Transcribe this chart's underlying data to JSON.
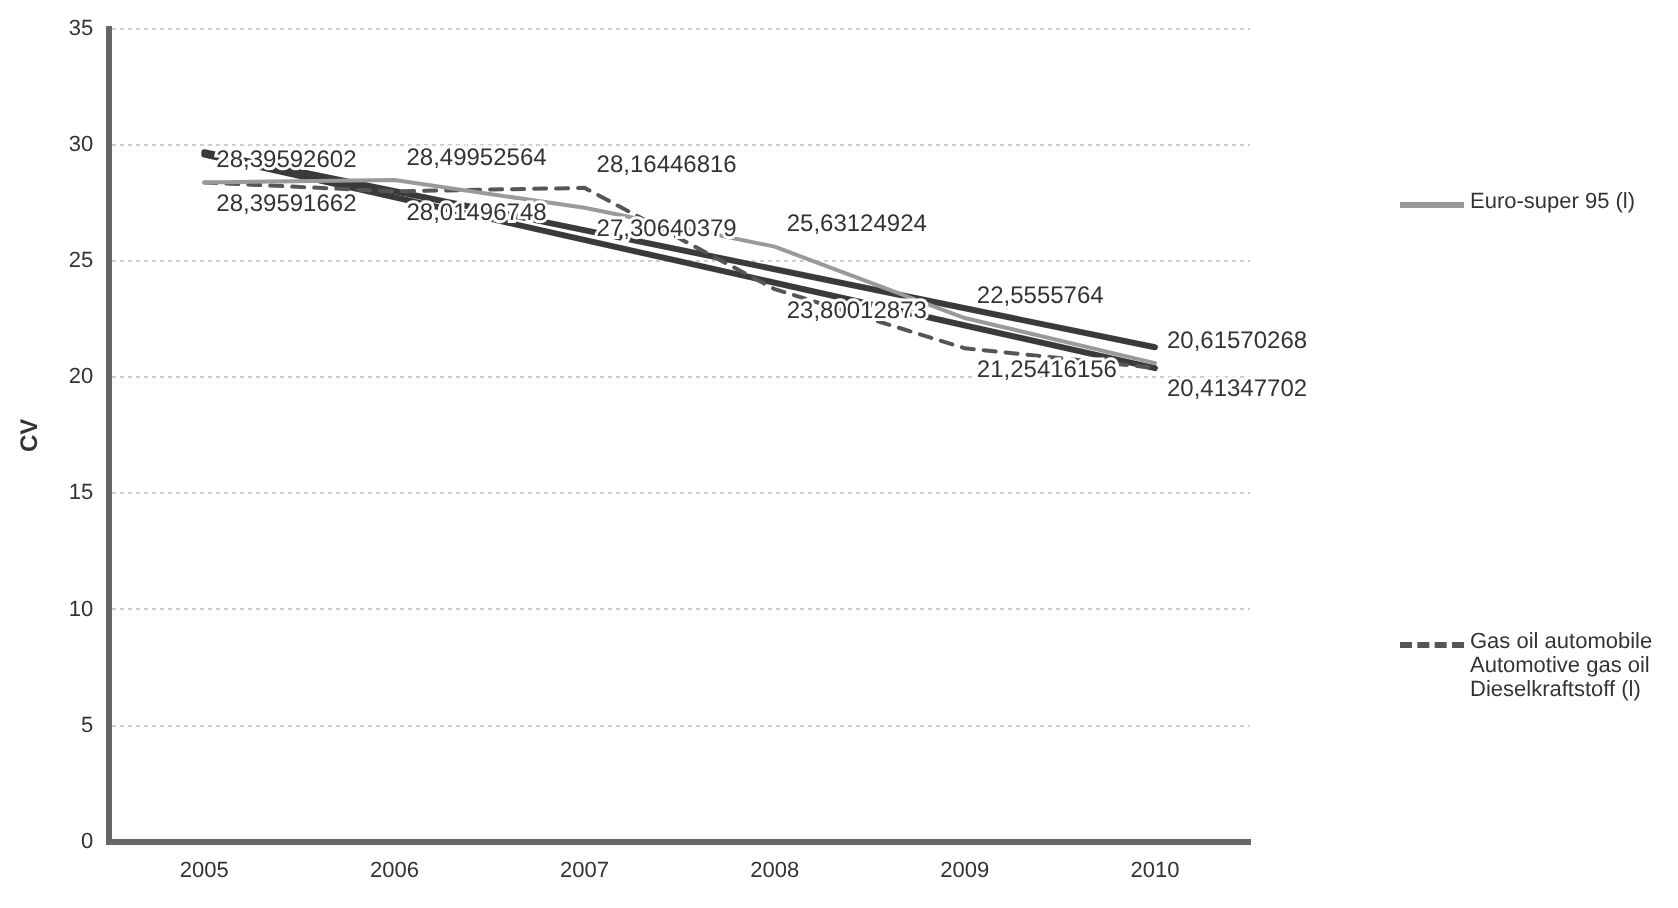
{
  "chart_data": {
    "type": "line",
    "ylabel": "CV",
    "categories": [
      "2005",
      "2006",
      "2007",
      "2008",
      "2009",
      "2010"
    ],
    "series": [
      {
        "name": "Euro-super 95 (l)",
        "color": "#9a9a9a",
        "line_style": "solid",
        "values": [
          28.39592602,
          28.49952564,
          27.30640379,
          25.63124924,
          22.5555764,
          20.61570268
        ],
        "value_labels": [
          "28,39592602",
          "28,49952564",
          "27,30640379",
          "25,63124924",
          "22,5555764",
          "20,61570268"
        ]
      },
      {
        "name": "Gas oil automobile Automotive gas oil Dieselkraftstoff (l)",
        "color": "#555555",
        "line_style": "dashed",
        "values": [
          28.39591662,
          28.01496748,
          28.16446816,
          23.80012873,
          21.25416156,
          20.41347702
        ],
        "value_labels": [
          "28,39591662",
          "28,01496748",
          "28,16446816",
          "23,80012873",
          "21,25416156",
          "20,41347702"
        ]
      },
      {
        "type": "line",
        "color": "#3a3a3a",
        "line_style": "solid",
        "values": [
          29.6,
          null,
          null,
          null,
          null,
          20.4
        ]
      },
      {
        "type": "line",
        "color": "#3a3a3a",
        "line_style": "solid",
        "values": [
          29.7,
          null,
          null,
          null,
          null,
          21.3
        ]
      }
    ],
    "ylim": [
      0,
      35
    ],
    "yticks": [
      0,
      5,
      10,
      15,
      20,
      25,
      30,
      35
    ],
    "grid": "y",
    "legend": "right",
    "marker": "none"
  }
}
